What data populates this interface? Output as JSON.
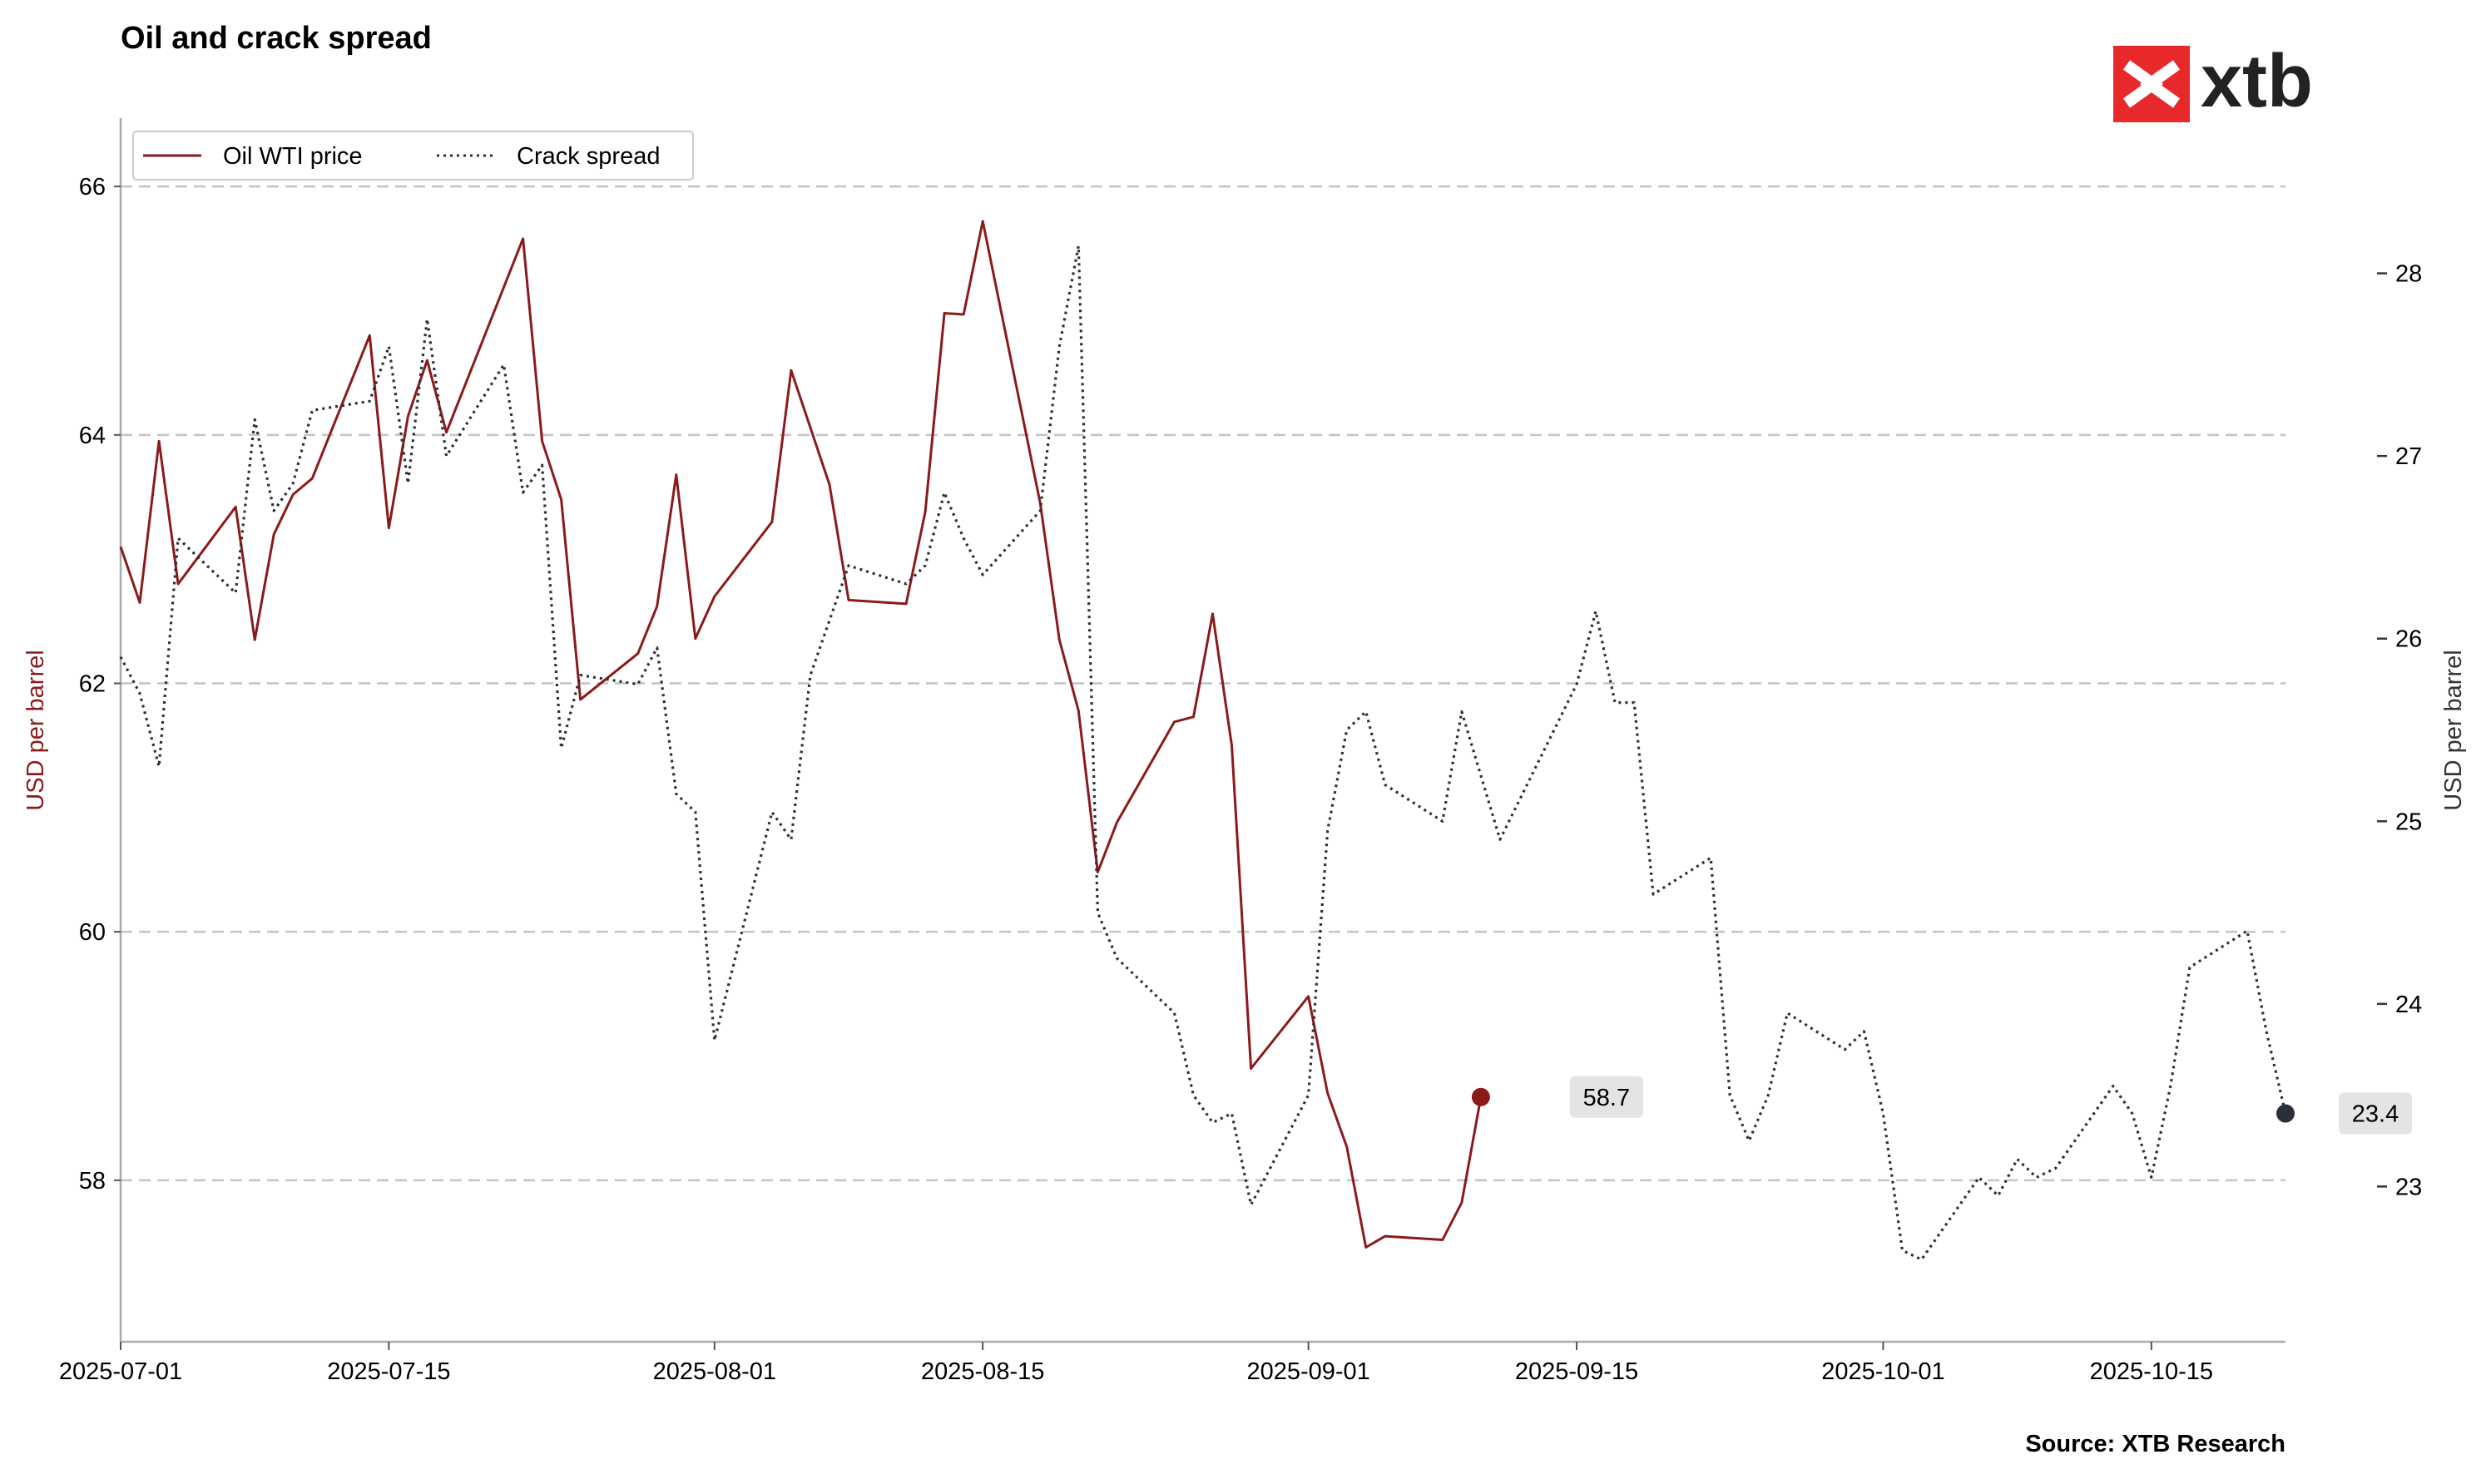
{
  "chart_data": {
    "type": "line",
    "title": "Oil and crack spread",
    "source": "Source: XTB Research",
    "brand": {
      "name": "xtb",
      "color": "#e8292b"
    },
    "ylabel_left": "USD per barrel",
    "ylabel_right": "USD per barrel",
    "xlim": [
      "2025-07-01",
      "2025-10-22"
    ],
    "ylim_left": [
      56.7,
      66.55
    ],
    "ylim_right": [
      22.15,
      28.85
    ],
    "x_ticks": [
      "2025-07-01",
      "2025-07-15",
      "2025-08-01",
      "2025-08-15",
      "2025-09-01",
      "2025-09-15",
      "2025-10-01",
      "2025-10-15"
    ],
    "y_ticks_left": [
      "58",
      "60",
      "62",
      "64",
      "66"
    ],
    "y_ticks_right": [
      "23",
      "24",
      "25",
      "26",
      "27",
      "28"
    ],
    "grid": "horizontal dashed",
    "legend_position": "top-left",
    "series": [
      {
        "name": "Oil WTI price",
        "axis": "left",
        "color": "#8b1a1a",
        "style": "solid",
        "end_label": "58.7",
        "points": [
          [
            "2025-07-01",
            63.1
          ],
          [
            "2025-07-02",
            62.65
          ],
          [
            "2025-07-03",
            63.95
          ],
          [
            "2025-07-04",
            62.8
          ],
          [
            "2025-07-07",
            63.42
          ],
          [
            "2025-07-08",
            62.35
          ],
          [
            "2025-07-09",
            63.2
          ],
          [
            "2025-07-10",
            63.52
          ],
          [
            "2025-07-11",
            63.65
          ],
          [
            "2025-07-14",
            64.8
          ],
          [
            "2025-07-15",
            63.25
          ],
          [
            "2025-07-16",
            64.15
          ],
          [
            "2025-07-17",
            64.6
          ],
          [
            "2025-07-18",
            64.02
          ],
          [
            "2025-07-22",
            65.58
          ],
          [
            "2025-07-23",
            63.95
          ],
          [
            "2025-07-24",
            63.48
          ],
          [
            "2025-07-25",
            61.87
          ],
          [
            "2025-07-28",
            62.24
          ],
          [
            "2025-07-29",
            62.62
          ],
          [
            "2025-07-30",
            63.68
          ],
          [
            "2025-07-31",
            62.36
          ],
          [
            "2025-08-01",
            62.7
          ],
          [
            "2025-08-04",
            63.3
          ],
          [
            "2025-08-05",
            64.52
          ],
          [
            "2025-08-07",
            63.6
          ],
          [
            "2025-08-08",
            62.67
          ],
          [
            "2025-08-11",
            62.64
          ],
          [
            "2025-08-12",
            63.38
          ],
          [
            "2025-08-13",
            64.98
          ],
          [
            "2025-08-14",
            64.97
          ],
          [
            "2025-08-15",
            65.72
          ],
          [
            "2025-08-18",
            63.45
          ],
          [
            "2025-08-19",
            62.35
          ],
          [
            "2025-08-20",
            61.78
          ],
          [
            "2025-08-21",
            60.48
          ],
          [
            "2025-08-22",
            60.88
          ],
          [
            "2025-08-25",
            61.69
          ],
          [
            "2025-08-26",
            61.73
          ],
          [
            "2025-08-27",
            62.56
          ],
          [
            "2025-08-28",
            61.5
          ],
          [
            "2025-08-29",
            58.9
          ],
          [
            "2025-09-01",
            59.48
          ],
          [
            "2025-09-02",
            58.7
          ],
          [
            "2025-09-03",
            58.27
          ],
          [
            "2025-09-04",
            57.46
          ],
          [
            "2025-09-05",
            57.55
          ],
          [
            "2025-09-08",
            57.52
          ],
          [
            "2025-09-09",
            57.82
          ],
          [
            "2025-09-10",
            58.67
          ]
        ]
      },
      {
        "name": "Crack spread",
        "axis": "right",
        "color": "#2b2f3a",
        "style": "dotted",
        "end_label": "23.4",
        "points": [
          [
            "2025-07-01",
            25.9
          ],
          [
            "2025-07-02",
            25.7
          ],
          [
            "2025-07-03",
            25.3
          ],
          [
            "2025-07-04",
            26.55
          ],
          [
            "2025-07-07",
            26.25
          ],
          [
            "2025-07-08",
            27.2
          ],
          [
            "2025-07-09",
            26.7
          ],
          [
            "2025-07-10",
            26.85
          ],
          [
            "2025-07-11",
            27.25
          ],
          [
            "2025-07-14",
            27.3
          ],
          [
            "2025-07-15",
            27.6
          ],
          [
            "2025-07-16",
            26.85
          ],
          [
            "2025-07-17",
            27.75
          ],
          [
            "2025-07-18",
            27.0
          ],
          [
            "2025-07-21",
            27.5
          ],
          [
            "2025-07-22",
            26.8
          ],
          [
            "2025-07-23",
            26.95
          ],
          [
            "2025-07-24",
            25.4
          ],
          [
            "2025-07-25",
            25.8
          ],
          [
            "2025-07-28",
            25.75
          ],
          [
            "2025-07-29",
            25.95
          ],
          [
            "2025-07-30",
            25.15
          ],
          [
            "2025-07-31",
            25.05
          ],
          [
            "2025-08-01",
            23.8
          ],
          [
            "2025-08-04",
            25.05
          ],
          [
            "2025-08-05",
            24.9
          ],
          [
            "2025-08-06",
            25.8
          ],
          [
            "2025-08-07",
            26.1
          ],
          [
            "2025-08-08",
            26.4
          ],
          [
            "2025-08-11",
            26.3
          ],
          [
            "2025-08-12",
            26.4
          ],
          [
            "2025-08-13",
            26.8
          ],
          [
            "2025-08-14",
            26.55
          ],
          [
            "2025-08-15",
            26.35
          ],
          [
            "2025-08-18",
            26.7
          ],
          [
            "2025-08-19",
            27.6
          ],
          [
            "2025-08-20",
            28.15
          ],
          [
            "2025-08-21",
            24.5
          ],
          [
            "2025-08-22",
            24.25
          ],
          [
            "2025-08-25",
            23.95
          ],
          [
            "2025-08-26",
            23.5
          ],
          [
            "2025-08-27",
            23.35
          ],
          [
            "2025-08-28",
            23.4
          ],
          [
            "2025-08-29",
            22.9
          ],
          [
            "2025-09-01",
            23.5
          ],
          [
            "2025-09-02",
            24.95
          ],
          [
            "2025-09-03",
            25.5
          ],
          [
            "2025-09-04",
            25.6
          ],
          [
            "2025-09-05",
            25.2
          ],
          [
            "2025-09-08",
            25.0
          ],
          [
            "2025-09-09",
            25.6
          ],
          [
            "2025-09-11",
            24.9
          ],
          [
            "2025-09-15",
            25.75
          ],
          [
            "2025-09-16",
            26.15
          ],
          [
            "2025-09-17",
            25.65
          ],
          [
            "2025-09-18",
            25.65
          ],
          [
            "2025-09-19",
            24.6
          ],
          [
            "2025-09-22",
            24.8
          ],
          [
            "2025-09-23",
            23.5
          ],
          [
            "2025-09-24",
            23.25
          ],
          [
            "2025-09-25",
            23.5
          ],
          [
            "2025-09-26",
            23.95
          ],
          [
            "2025-09-29",
            23.75
          ],
          [
            "2025-09-30",
            23.85
          ],
          [
            "2025-10-01",
            23.4
          ],
          [
            "2025-10-02",
            22.65
          ],
          [
            "2025-10-03",
            22.6
          ],
          [
            "2025-10-06",
            23.05
          ],
          [
            "2025-10-07",
            22.95
          ],
          [
            "2025-10-08",
            23.15
          ],
          [
            "2025-10-09",
            23.05
          ],
          [
            "2025-10-10",
            23.1
          ],
          [
            "2025-10-13",
            23.55
          ],
          [
            "2025-10-14",
            23.4
          ],
          [
            "2025-10-15",
            23.05
          ],
          [
            "2025-10-16",
            23.55
          ],
          [
            "2025-10-17",
            24.2
          ],
          [
            "2025-10-20",
            24.4
          ],
          [
            "2025-10-21",
            23.85
          ],
          [
            "2025-10-22",
            23.4
          ]
        ]
      }
    ]
  }
}
